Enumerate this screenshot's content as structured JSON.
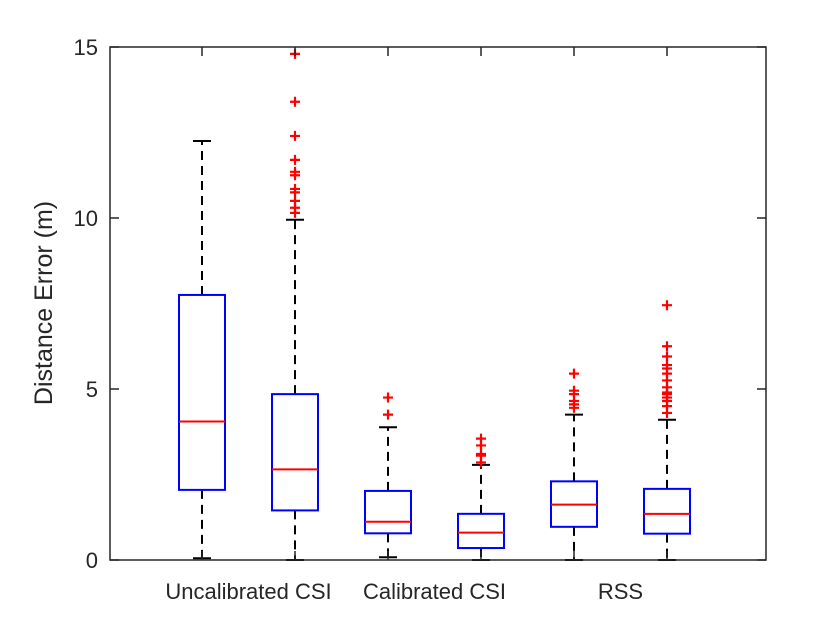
{
  "chart_data": {
    "type": "boxplot",
    "title": "",
    "xlabel": "",
    "ylabel": "Distance Error (m)",
    "ylim": [
      0,
      15
    ],
    "yticks": [
      0,
      5,
      10,
      15
    ],
    "grid": false,
    "group_labels": [
      {
        "label": "Uncalibrated CSI",
        "covers_boxes": [
          0,
          1
        ]
      },
      {
        "label": "Calibrated CSI",
        "covers_boxes": [
          2,
          3
        ]
      },
      {
        "label": "RSS",
        "covers_boxes": [
          4,
          5
        ]
      }
    ],
    "colors": {
      "box": "#0000ff",
      "median": "#ff0000",
      "whisker": "#000000",
      "outlier": "#ff0000"
    },
    "boxes": [
      {
        "name": "Uncalibrated CSI (a)",
        "whisker_low": 0.05,
        "q1": 2.05,
        "median": 4.05,
        "q3": 7.75,
        "whisker_high": 12.25,
        "outliers": []
      },
      {
        "name": "Uncalibrated CSI (b)",
        "whisker_low": 0.0,
        "q1": 1.45,
        "median": 2.65,
        "q3": 4.85,
        "whisker_high": 9.95,
        "outliers": [
          10.15,
          10.3,
          10.5,
          10.75,
          10.85,
          11.25,
          11.35,
          11.7,
          12.4,
          13.4,
          14.8
        ]
      },
      {
        "name": "Calibrated CSI (a)",
        "whisker_low": 0.08,
        "q1": 0.78,
        "median": 1.12,
        "q3": 2.02,
        "whisker_high": 3.88,
        "outliers": [
          4.25,
          4.75
        ]
      },
      {
        "name": "Calibrated CSI (b)",
        "whisker_low": 0.0,
        "q1": 0.35,
        "median": 0.8,
        "q3": 1.35,
        "whisker_high": 2.78,
        "outliers": [
          2.85,
          3.05,
          3.1,
          3.35,
          3.55
        ]
      },
      {
        "name": "RSS (a)",
        "whisker_low": 0.0,
        "q1": 0.97,
        "median": 1.62,
        "q3": 2.3,
        "whisker_high": 4.25,
        "outliers": [
          4.45,
          4.55,
          4.65,
          4.85,
          4.95,
          5.45
        ]
      },
      {
        "name": "RSS (b)",
        "whisker_low": 0.0,
        "q1": 0.77,
        "median": 1.35,
        "q3": 2.08,
        "whisker_high": 4.1,
        "outliers": [
          4.3,
          4.5,
          4.65,
          4.75,
          4.85,
          4.9,
          5.05,
          5.25,
          5.45,
          5.6,
          5.7,
          5.95,
          6.25,
          7.45
        ]
      }
    ]
  }
}
